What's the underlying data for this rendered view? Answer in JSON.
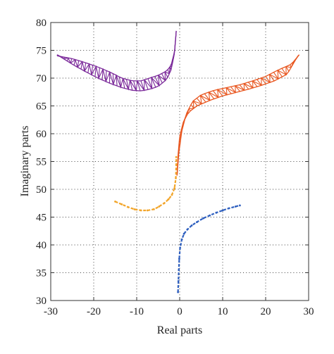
{
  "chart_data": {
    "type": "line",
    "title": "",
    "xlabel": "Real parts",
    "ylabel": "Imaginary parts",
    "xlim": [
      -30,
      30
    ],
    "ylim": [
      30,
      80
    ],
    "xticks": [
      -30,
      -20,
      -10,
      0,
      10,
      20,
      30
    ],
    "yticks": [
      30,
      35,
      40,
      45,
      50,
      55,
      60,
      65,
      70,
      75,
      80
    ],
    "grid": true,
    "legend": "none",
    "series": [
      {
        "color": "#7b2a9a",
        "style": "zigzag",
        "outer": [
          [
            -28.5,
            74.2
          ],
          [
            -25,
            72.5
          ],
          [
            -22,
            71.2
          ],
          [
            -19,
            70.0
          ],
          [
            -16,
            69.0
          ],
          [
            -13.5,
            68.3
          ],
          [
            -11,
            67.8
          ],
          [
            -9,
            67.7
          ],
          [
            -7,
            68.0
          ],
          [
            -5,
            68.5
          ],
          [
            -3,
            69.8
          ],
          [
            -2,
            71.5
          ],
          [
            -1.2,
            74.5
          ],
          [
            -0.8,
            78.5
          ]
        ],
        "inner": [
          [
            -28.5,
            74.0
          ],
          [
            -25,
            73.5
          ],
          [
            -22,
            72.8
          ],
          [
            -19,
            72.0
          ],
          [
            -16,
            71.0
          ],
          [
            -13.5,
            70.0
          ],
          [
            -11,
            69.5
          ],
          [
            -9,
            69.5
          ],
          [
            -7,
            70.0
          ],
          [
            -5,
            70.5
          ],
          [
            -3,
            71.3
          ],
          [
            -2,
            72.3
          ],
          [
            -1.2,
            74.8
          ],
          [
            -0.8,
            78.5
          ]
        ]
      },
      {
        "color": "#e8561f",
        "style": "zigzag",
        "outer": [
          [
            -0.6,
            52.5
          ],
          [
            -0.4,
            56.0
          ],
          [
            0.0,
            59.5
          ],
          [
            0.8,
            62.0
          ],
          [
            2.0,
            63.8
          ],
          [
            4.0,
            65.0
          ],
          [
            7.0,
            66.0
          ],
          [
            10.0,
            66.8
          ],
          [
            13.0,
            67.4
          ],
          [
            16.0,
            68.0
          ],
          [
            19.0,
            68.7
          ],
          [
            22.0,
            69.5
          ],
          [
            25.0,
            70.7
          ],
          [
            27.5,
            74.0
          ]
        ],
        "inner": [
          [
            -0.6,
            52.5
          ],
          [
            -0.2,
            56.5
          ],
          [
            0.5,
            60.5
          ],
          [
            1.5,
            63.5
          ],
          [
            3.0,
            65.8
          ],
          [
            5.0,
            67.0
          ],
          [
            8.0,
            67.8
          ],
          [
            11.0,
            68.3
          ],
          [
            14.0,
            68.8
          ],
          [
            17.0,
            69.5
          ],
          [
            20.0,
            70.3
          ],
          [
            23.0,
            71.5
          ],
          [
            26.0,
            72.5
          ],
          [
            27.8,
            74.2
          ]
        ]
      },
      {
        "color": "#f2a52a",
        "style": "dashes",
        "points": [
          [
            -15.0,
            47.8
          ],
          [
            -13.5,
            47.3
          ],
          [
            -12.0,
            46.8
          ],
          [
            -10.5,
            46.4
          ],
          [
            -9.0,
            46.2
          ],
          [
            -7.5,
            46.2
          ],
          [
            -6.0,
            46.4
          ],
          [
            -4.8,
            46.9
          ],
          [
            -3.6,
            47.5
          ],
          [
            -2.6,
            48.2
          ],
          [
            -1.8,
            49.0
          ],
          [
            -1.2,
            50.2
          ],
          [
            -0.9,
            52.0
          ],
          [
            -0.8,
            54.5
          ],
          [
            -0.8,
            55.8
          ]
        ]
      },
      {
        "color": "#2e5fbf",
        "style": "dashes",
        "points": [
          [
            -0.4,
            31.5
          ],
          [
            -0.3,
            33.5
          ],
          [
            -0.2,
            35.5
          ],
          [
            -0.1,
            37.5
          ],
          [
            0.1,
            39.5
          ],
          [
            0.5,
            41.0
          ],
          [
            1.0,
            42.0
          ],
          [
            1.8,
            42.8
          ],
          [
            2.8,
            43.5
          ],
          [
            4.0,
            44.1
          ],
          [
            5.5,
            44.8
          ],
          [
            7.0,
            45.3
          ],
          [
            8.5,
            45.8
          ],
          [
            10.0,
            46.2
          ],
          [
            11.5,
            46.6
          ],
          [
            13.0,
            46.9
          ],
          [
            14.0,
            47.1
          ]
        ]
      }
    ]
  }
}
